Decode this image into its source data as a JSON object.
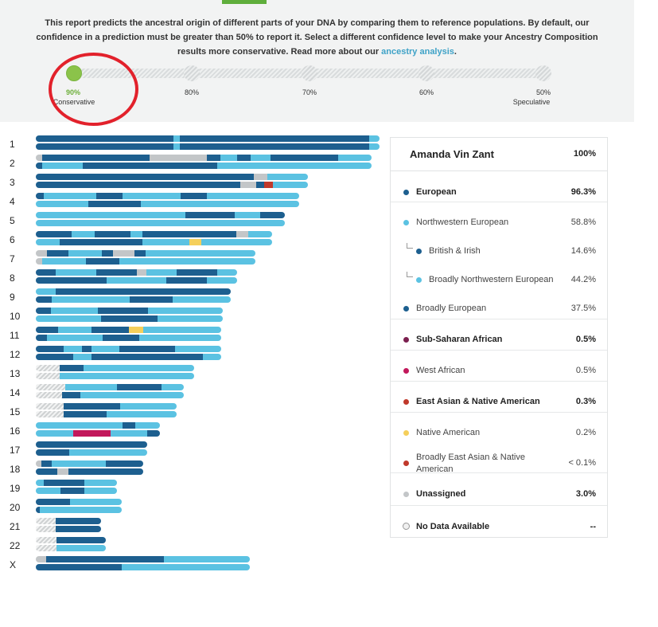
{
  "intro": {
    "text": "This report predicts the ancestral origin of different parts of your DNA by comparing them to reference populations. By default, our confidence in a prediction must be greater than 50% to report it. Select a different confidence level to make your Ancestry Composition results more conservative. Read more about our ",
    "link": "ancestry analysis",
    "end": "."
  },
  "slider": {
    "selected": "90%",
    "stops": [
      {
        "pct": "90%",
        "sub": "Conservative"
      },
      {
        "pct": "80%",
        "sub": ""
      },
      {
        "pct": "70%",
        "sub": ""
      },
      {
        "pct": "60%",
        "sub": ""
      },
      {
        "pct": "50%",
        "sub": "Speculative"
      }
    ]
  },
  "colors": {
    "dark_blue": "#1d5f8f",
    "light_blue": "#5bc2e2",
    "gray": "#c3c6c8",
    "yellow": "#f5cf5b",
    "red": "#c0392b",
    "magenta": "#c2185b",
    "hatch": "#d8dadb",
    "slider_green": "#8bc34a",
    "annotation_red": "#e2212b"
  },
  "chromosomes": [
    "1",
    "2",
    "3",
    "4",
    "5",
    "6",
    "7",
    "8",
    "9",
    "10",
    "11",
    "12",
    "13",
    "14",
    "15",
    "16",
    "17",
    "18",
    "19",
    "20",
    "21",
    "22",
    "X"
  ],
  "panel": {
    "name": "Amanda Vin Zant",
    "total": "100%",
    "rows": [
      {
        "label": "European",
        "value": "96.3%",
        "bold": true,
        "color": "#1d5f8f",
        "indent": 0
      },
      {
        "label": "Northwestern European",
        "value": "58.8%",
        "bold": false,
        "color": "#5bc2e2",
        "indent": 0
      },
      {
        "label": "British & Irish",
        "value": "14.6%",
        "bold": false,
        "color": "#1d5f8f",
        "indent": 1
      },
      {
        "label": "Broadly Northwestern European",
        "value": "44.2%",
        "bold": false,
        "color": "#5bc2e2",
        "indent": 1
      },
      {
        "label": "Broadly European",
        "value": "37.5%",
        "bold": false,
        "color": "#1d5f8f",
        "indent": 0
      },
      {
        "label": "Sub-Saharan African",
        "value": "0.5%",
        "bold": true,
        "color": "#7b1f4f",
        "indent": 0
      },
      {
        "label": "West African",
        "value": "0.5%",
        "bold": false,
        "color": "#c2185b",
        "indent": 0
      },
      {
        "label": "East Asian & Native American",
        "value": "0.3%",
        "bold": true,
        "color": "#c0392b",
        "indent": 0
      },
      {
        "label": "Native American",
        "value": "0.2%",
        "bold": false,
        "color": "#f5cf5b",
        "indent": 0
      },
      {
        "label": "Broadly East Asian & Native American",
        "value": "< 0.1%",
        "bold": false,
        "color": "#c0392b",
        "indent": 0
      },
      {
        "label": "Unassigned",
        "value": "3.0%",
        "bold": true,
        "color": "#c3c6c8",
        "indent": 0
      },
      {
        "label": "No Data Available",
        "value": "--",
        "bold": true,
        "color": "",
        "indent": 0
      }
    ]
  }
}
